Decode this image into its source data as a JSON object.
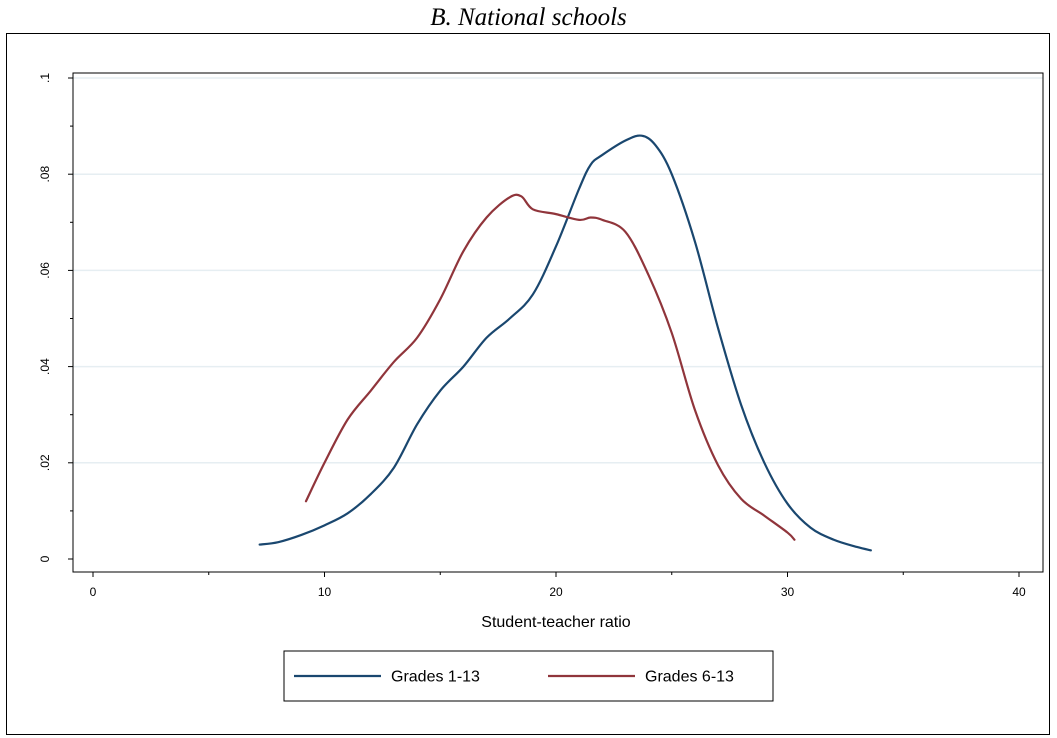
{
  "chart_data": {
    "type": "line",
    "title": "B.   National schools",
    "xlabel": "Student-teacher ratio",
    "ylabel": "",
    "xlim": [
      0,
      40
    ],
    "ylim": [
      0,
      0.1
    ],
    "x_ticks": [
      0,
      10,
      20,
      30,
      40
    ],
    "x_tick_labels": [
      "0",
      "10",
      "20",
      "30",
      "40"
    ],
    "x_minor_ticks": [
      5,
      15,
      25,
      35
    ],
    "y_ticks": [
      0,
      0.02,
      0.04,
      0.06,
      0.08,
      0.1
    ],
    "y_tick_labels": [
      "0",
      ".02",
      ".04",
      ".06",
      ".08",
      ".1"
    ],
    "y_minor_ticks": [
      0.01,
      0.03,
      0.05,
      0.07,
      0.09
    ],
    "grid": "horizontal",
    "legend_position": "bottom",
    "series": [
      {
        "name": "Grades 1-13",
        "color": "#1a476f",
        "x": [
          7.2,
          8.0,
          9.0,
          10.0,
          11.0,
          12.0,
          13.0,
          14.0,
          15.0,
          16.0,
          17.0,
          18.0,
          19.0,
          20.0,
          21.0,
          21.5,
          22.0,
          23.0,
          23.7,
          24.3,
          25.0,
          26.0,
          27.0,
          28.0,
          29.0,
          30.0,
          31.0,
          32.0,
          33.0,
          33.6
        ],
        "y": [
          0.003,
          0.0035,
          0.005,
          0.007,
          0.0095,
          0.0135,
          0.019,
          0.028,
          0.035,
          0.04,
          0.046,
          0.05,
          0.055,
          0.065,
          0.077,
          0.082,
          0.084,
          0.087,
          0.088,
          0.086,
          0.08,
          0.066,
          0.048,
          0.032,
          0.02,
          0.0115,
          0.0065,
          0.004,
          0.0025,
          0.0018
        ]
      },
      {
        "name": "Grades 6-13",
        "color": "#90353b",
        "x": [
          9.2,
          10.0,
          11.0,
          12.0,
          13.0,
          14.0,
          15.0,
          16.0,
          17.0,
          18.0,
          18.5,
          19.0,
          20.0,
          21.0,
          21.5,
          22.0,
          23.0,
          24.0,
          25.0,
          26.0,
          27.0,
          28.0,
          29.0,
          30.0,
          30.3
        ],
        "y": [
          0.012,
          0.02,
          0.029,
          0.035,
          0.041,
          0.046,
          0.054,
          0.064,
          0.071,
          0.0752,
          0.0754,
          0.0727,
          0.0717,
          0.0705,
          0.071,
          0.0705,
          0.068,
          0.059,
          0.047,
          0.031,
          0.0195,
          0.0125,
          0.009,
          0.0055,
          0.004
        ]
      }
    ]
  }
}
